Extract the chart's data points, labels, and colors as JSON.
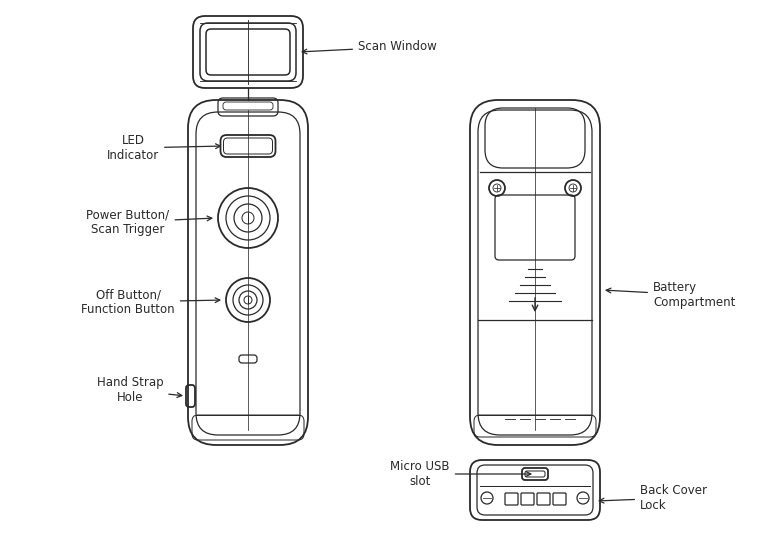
{
  "bg_color": "#ffffff",
  "line_color": "#2a2a2a",
  "labels": {
    "scan_window": "Scan Window",
    "led_indicator": "LED\nIndicator",
    "power_button": "Power Button/\nScan Trigger",
    "off_button": "Off Button/\nFunction Button",
    "hand_strap": "Hand Strap\nHole",
    "micro_usb": "Micro USB\nslot",
    "battery": "Battery\nCompartment",
    "back_cover": "Back Cover\nLock"
  },
  "font_size": 8.5,
  "lw_main": 1.3,
  "lw_detail": 0.9
}
